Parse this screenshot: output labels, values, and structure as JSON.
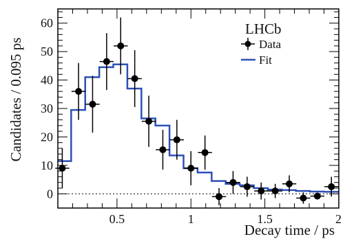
{
  "chart_data": {
    "type": "scatter",
    "experiment_label": "LHCb",
    "xlabel": "Decay time / ps",
    "ylabel": "Candidates / 0.095 ps",
    "xlim": [
      0.1,
      2.0
    ],
    "ylim": [
      -5,
      65
    ],
    "x_ticks": [
      0.5,
      1,
      1.5,
      2
    ],
    "x_tick_labels": [
      "0.5",
      "1",
      "1.5",
      "2"
    ],
    "y_ticks": [
      0,
      10,
      20,
      30,
      40,
      50,
      60
    ],
    "y_tick_labels": [
      "0",
      "10",
      "20",
      "30",
      "40",
      "50",
      "60"
    ],
    "legend": {
      "position": "top-right",
      "entries": [
        {
          "label": "Data",
          "style": "marker"
        },
        {
          "label": "Fit",
          "style": "line"
        }
      ]
    },
    "zero_line": {
      "y": 0,
      "style": "dotted"
    },
    "colors": {
      "data": "#000000",
      "fit": "#2c4fb5"
    },
    "series": [
      {
        "name": "Data",
        "points": [
          {
            "x": 0.13,
            "y": 9,
            "yerr": 7
          },
          {
            "x": 0.24,
            "y": 36,
            "yerr": 10
          },
          {
            "x": 0.335,
            "y": 31.5,
            "yerr": 10
          },
          {
            "x": 0.43,
            "y": 46.5,
            "yerr": 10
          },
          {
            "x": 0.525,
            "y": 52,
            "yerr": 10
          },
          {
            "x": 0.62,
            "y": 40.5,
            "yerr": 10
          },
          {
            "x": 0.715,
            "y": 25.5,
            "yerr": 9
          },
          {
            "x": 0.81,
            "y": 15.5,
            "yerr": 7
          },
          {
            "x": 0.905,
            "y": 19,
            "yerr": 7
          },
          {
            "x": 1.0,
            "y": 9,
            "yerr": 6
          },
          {
            "x": 1.095,
            "y": 14.5,
            "yerr": 6
          },
          {
            "x": 1.19,
            "y": -1,
            "yerr": 3
          },
          {
            "x": 1.285,
            "y": 4,
            "yerr": 4
          },
          {
            "x": 1.38,
            "y": 2.5,
            "yerr": 3.5
          },
          {
            "x": 1.475,
            "y": 1,
            "yerr": 3
          },
          {
            "x": 1.57,
            "y": 1,
            "yerr": 2.5
          },
          {
            "x": 1.665,
            "y": 3.5,
            "yerr": 3
          },
          {
            "x": 1.76,
            "y": -1.5,
            "yerr": 2
          },
          {
            "x": 1.855,
            "y": -0.8,
            "yerr": 1.2
          },
          {
            "x": 1.95,
            "y": 2.5,
            "yerr": 3.5
          }
        ],
        "bin_half_width": 0.0475
      },
      {
        "name": "Fit",
        "bin_edges": [
          0.1,
          0.19,
          0.285,
          0.38,
          0.475,
          0.57,
          0.665,
          0.76,
          0.855,
          0.95,
          1.045,
          1.14,
          1.235,
          1.33,
          1.425,
          1.52,
          1.615,
          1.71,
          1.805,
          1.9,
          2.0
        ],
        "values": [
          11.5,
          29.5,
          41,
          44.5,
          45.5,
          37,
          26.5,
          24,
          13.5,
          9,
          7.5,
          4.5,
          3.5,
          3,
          2,
          1.5,
          1.3,
          1,
          0.8,
          0.7
        ]
      }
    ]
  }
}
